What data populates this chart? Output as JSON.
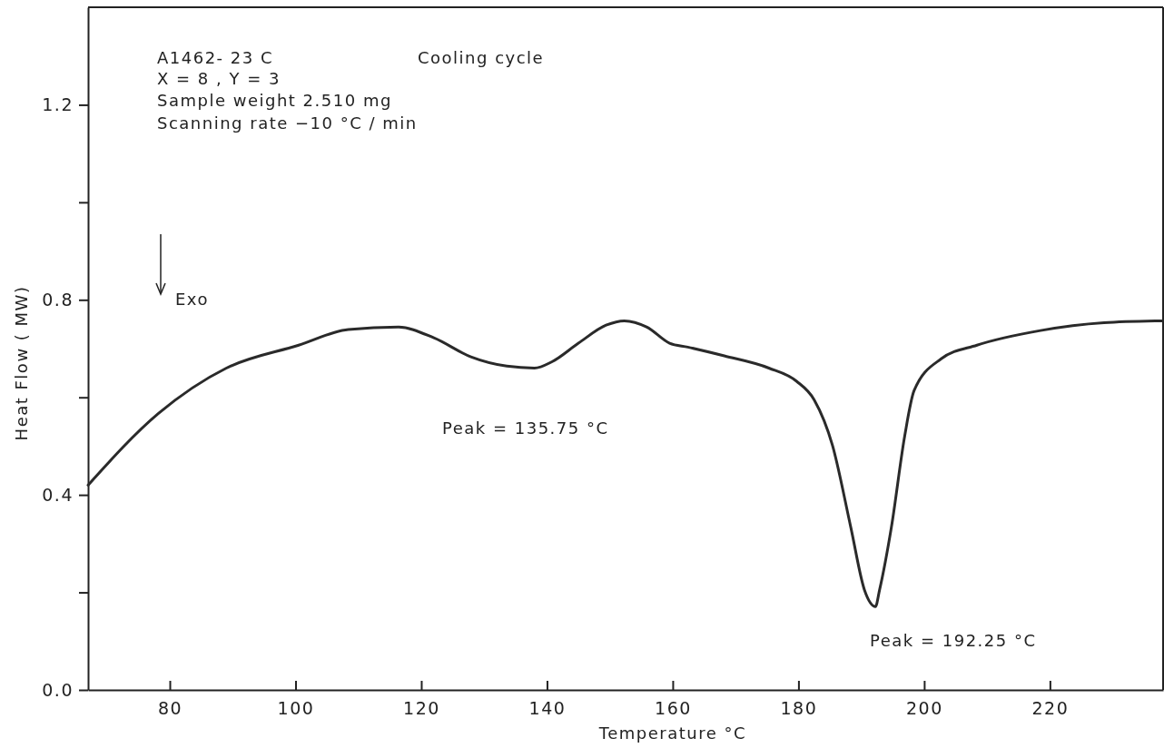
{
  "chart_data": {
    "type": "line",
    "xlabel": "Temperature °C",
    "ylabel": "Heat Flow ( MW)",
    "xlim": [
      67,
      238
    ],
    "ylim": [
      0,
      1.4
    ],
    "xticks": [
      80,
      100,
      120,
      140,
      160,
      180,
      200,
      220
    ],
    "yticks": [
      {
        "value": 0,
        "label": "0.0"
      },
      {
        "value": 0.2,
        "label": null
      },
      {
        "value": 0.4,
        "label": "0.4"
      },
      {
        "value": 0.6,
        "label": null
      },
      {
        "value": 0.8,
        "label": "0.8"
      },
      {
        "value": 1.0,
        "label": null
      },
      {
        "value": 1.2,
        "label": "1.2"
      }
    ],
    "series": [
      {
        "color": "#2a2a2a",
        "x": [
          67,
          78.2,
          89,
          100.5,
          108.4,
          116.4,
          122,
          127.9,
          133.6,
          138,
          140.8,
          145,
          149.4,
          152.3,
          155.9,
          159.5,
          162.4,
          168.2,
          175.3,
          179.7,
          182.5,
          185.4,
          188.3,
          190.5,
          192.25,
          192.9,
          194.8,
          196.9,
          198.4,
          202.7,
          208.4,
          218.5,
          228.6,
          238
        ],
        "values": [
          0.42,
          0.567,
          0.66,
          0.707,
          0.739,
          0.744,
          0.722,
          0.683,
          0.664,
          0.66,
          0.673,
          0.711,
          0.748,
          0.757,
          0.744,
          0.711,
          0.703,
          0.685,
          0.66,
          0.633,
          0.595,
          0.502,
          0.335,
          0.205,
          0.171,
          0.205,
          0.335,
          0.521,
          0.614,
          0.679,
          0.707,
          0.737,
          0.753,
          0.757
        ]
      }
    ],
    "marker": "none",
    "line_style": "solid",
    "grid": false,
    "annotations": [
      "A1462- 23 C",
      "Cooling cycle",
      "X = 8 , Y = 3",
      "Sample weight 2.510 mg",
      "Scanning rate −10 °C / min",
      "Exo",
      "Peak = 135.75 °C",
      "Peak = 192.25 °C"
    ]
  }
}
